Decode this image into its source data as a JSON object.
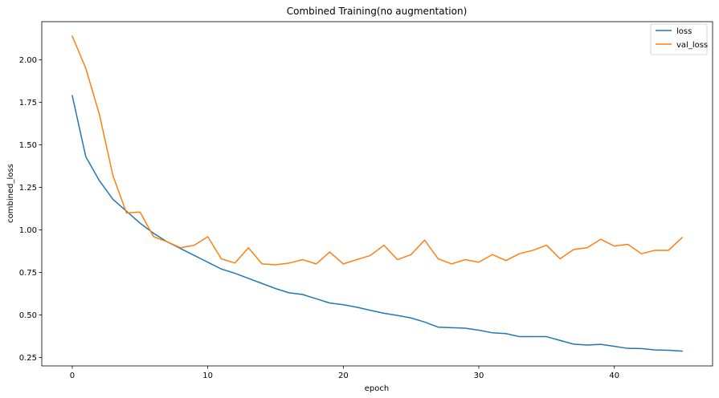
{
  "chart_data": {
    "type": "line",
    "title": "Combined Training(no augmentation)",
    "xlabel": "epoch",
    "ylabel": "combined_loss",
    "xlim": [
      -2.25,
      47.25
    ],
    "ylim": [
      0.2,
      2.225
    ],
    "xticks": [
      0,
      10,
      20,
      30,
      40
    ],
    "xtick_labels": [
      "0",
      "10",
      "20",
      "30",
      "40"
    ],
    "yticks": [
      0.25,
      0.5,
      0.75,
      1.0,
      1.25,
      1.5,
      1.75,
      2.0
    ],
    "ytick_labels": [
      "0.25",
      "0.50",
      "0.75",
      "1.00",
      "1.25",
      "1.50",
      "1.75",
      "2.00"
    ],
    "grid": false,
    "legend_position": "top-right",
    "x": [
      0,
      1,
      2,
      3,
      4,
      5,
      6,
      7,
      8,
      9,
      10,
      11,
      12,
      13,
      14,
      15,
      16,
      17,
      18,
      19,
      20,
      21,
      22,
      23,
      24,
      25,
      26,
      27,
      28,
      29,
      30,
      31,
      32,
      33,
      34,
      35,
      36,
      37,
      38,
      39,
      40,
      41,
      42,
      43,
      44,
      45
    ],
    "series": [
      {
        "name": "loss",
        "color": "#1f77b4",
        "values": [
          1.79,
          1.43,
          1.29,
          1.18,
          1.11,
          1.04,
          0.98,
          0.93,
          0.89,
          0.85,
          0.81,
          0.77,
          0.745,
          0.715,
          0.685,
          0.655,
          0.63,
          0.62,
          0.595,
          0.57,
          0.56,
          0.545,
          0.527,
          0.51,
          0.497,
          0.482,
          0.458,
          0.428,
          0.425,
          0.422,
          0.41,
          0.395,
          0.39,
          0.372,
          0.372,
          0.372,
          0.35,
          0.328,
          0.323,
          0.327,
          0.315,
          0.303,
          0.302,
          0.294,
          0.292,
          0.287
        ]
      },
      {
        "name": "val_loss",
        "color": "#ff7f0e",
        "values": [
          2.14,
          1.95,
          1.68,
          1.32,
          1.1,
          1.105,
          0.96,
          0.93,
          0.895,
          0.91,
          0.96,
          0.83,
          0.805,
          0.895,
          0.8,
          0.795,
          0.805,
          0.825,
          0.8,
          0.87,
          0.8,
          0.825,
          0.85,
          0.91,
          0.825,
          0.855,
          0.94,
          0.83,
          0.8,
          0.825,
          0.81,
          0.855,
          0.82,
          0.86,
          0.88,
          0.91,
          0.83,
          0.885,
          0.895,
          0.945,
          0.905,
          0.915,
          0.86,
          0.88,
          0.88,
          0.955
        ]
      }
    ]
  }
}
